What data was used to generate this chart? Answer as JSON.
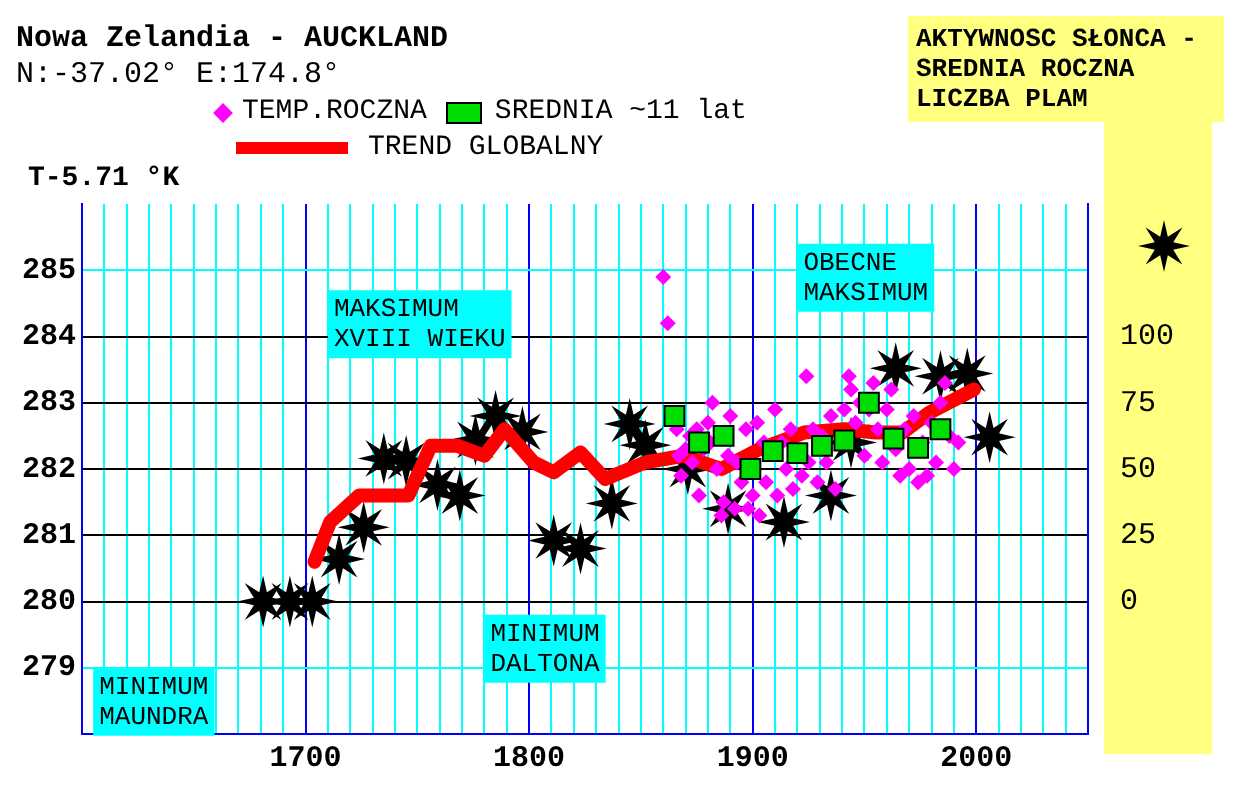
{
  "chart_data": {
    "type": "scatter",
    "title": "Nowa Zelandia - AUCKLAND",
    "subtitle": "N:-37.02° E:174.8°",
    "ylabel": "T-5.71 °K",
    "y2label": "AKTYWNOSC SŁONCA - SREDNIA ROCZNA LICZBA PLAM",
    "annotations": [
      "MAKSIMUM XVIII WIEKU",
      "MINIMUM DALTONA",
      "MINIMUM MAUNDRA",
      "OBECNE MAKSIMUM"
    ],
    "series": [
      {
        "name": "TEMP.ROCZNA",
        "type": "scatter",
        "marker": "diamond",
        "color": "#ff00ff",
        "x": [
          1860,
          1862,
          1866,
          1867,
          1868,
          1870,
          1872,
          1873,
          1875,
          1876,
          1878,
          1880,
          1881,
          1882,
          1884,
          1886,
          1887,
          1889,
          1890,
          1892,
          1893,
          1895,
          1897,
          1898,
          1900,
          1902,
          1903,
          1905,
          1906,
          1908,
          1910,
          1911,
          1913,
          1915,
          1917,
          1918,
          1920,
          1922,
          1924,
          1925,
          1927,
          1929,
          1931,
          1933,
          1935,
          1937,
          1939,
          1941,
          1943,
          1944,
          1946,
          1948,
          1950,
          1952,
          1954,
          1956,
          1958,
          1960,
          1962,
          1964,
          1966,
          1968,
          1970,
          1972,
          1974,
          1976,
          1978,
          1980,
          1982,
          1984,
          1986,
          1988,
          1990,
          1992
        ],
        "values": [
          284.9,
          284.2,
          282.6,
          282.2,
          281.9,
          282.3,
          282.5,
          282.1,
          282.6,
          281.6,
          282.3,
          282.7,
          282.4,
          283.0,
          282.0,
          281.3,
          281.5,
          282.2,
          282.8,
          281.4,
          282.1,
          281.8,
          282.6,
          281.4,
          281.6,
          282.7,
          281.3,
          282.4,
          281.8,
          null,
          282.9,
          281.6,
          282.4,
          282.0,
          282.6,
          281.7,
          null,
          281.9,
          283.4,
          282.1,
          282.6,
          281.8,
          282.5,
          282.1,
          282.8,
          281.7,
          null,
          282.9,
          283.4,
          283.2,
          282.7,
          283.0,
          282.2,
          282.9,
          283.3,
          282.6,
          282.1,
          282.9,
          283.2,
          282.3,
          281.9,
          282.6,
          282.0,
          282.8,
          281.8,
          282.4,
          281.9,
          282.7,
          282.1,
          283.0,
          283.3,
          282.5,
          282.0,
          282.4
        ]
      },
      {
        "name": "SREDNIA ~11 lat",
        "type": "scatter",
        "marker": "square",
        "color": "#00dd00",
        "x": [
          1865,
          1876,
          1887,
          1899,
          1909,
          1920,
          1931,
          1941,
          1952,
          1963,
          1974,
          1984
        ],
        "values": [
          282.8,
          282.4,
          282.5,
          282.0,
          282.27,
          282.24,
          282.35,
          282.43,
          283.0,
          282.46,
          282.32,
          282.6
        ]
      },
      {
        "name": "TREND GLOBALNY",
        "type": "line",
        "marker": "none",
        "color": "#ff0000",
        "x": [
          1704,
          1711,
          1724,
          1746,
          1756,
          1768,
          1780,
          1789,
          1802,
          1811,
          1823,
          1834,
          1852,
          1869,
          1886,
          1903,
          1923,
          1941,
          1955,
          1967,
          1979,
          1999
        ],
        "values": [
          280.6,
          281.2,
          281.6,
          281.6,
          282.35,
          282.35,
          282.2,
          282.6,
          282.1,
          281.95,
          282.25,
          281.85,
          282.1,
          282.2,
          282.0,
          282.3,
          282.55,
          282.6,
          282.55,
          282.55,
          282.85,
          283.2
        ]
      },
      {
        "type": "scatter",
        "marker": "star",
        "color": "#000000",
        "axis": "y2",
        "x": [
          1681,
          1693,
          1703,
          1715,
          1726,
          1735,
          1745,
          1759,
          1769,
          1776,
          1785,
          1797,
          1811,
          1823,
          1837,
          1845,
          1852,
          1871,
          1889,
          1914,
          1935,
          1944,
          1964,
          1984,
          1996,
          2006
        ],
        "values": [
          0,
          0,
          0,
          16,
          28,
          54,
          53,
          44,
          40,
          61,
          70,
          64,
          23,
          20,
          37,
          67,
          59,
          50,
          35,
          30,
          40,
          60,
          88,
          85,
          86,
          62
        ]
      }
    ],
    "xlim": [
      1600,
      2050
    ],
    "xticks": [
      {
        "value": 1610,
        "label": null
      },
      {
        "value": 1620,
        "label": null
      },
      {
        "value": 1630,
        "label": null
      },
      {
        "value": 1640,
        "label": null
      },
      {
        "value": 1650,
        "label": null
      },
      {
        "value": 1660,
        "label": null
      },
      {
        "value": 1670,
        "label": null
      },
      {
        "value": 1680,
        "label": null
      },
      {
        "value": 1690,
        "label": null
      },
      1700,
      {
        "value": 1710,
        "label": null
      },
      {
        "value": 1720,
        "label": null
      },
      {
        "value": 1730,
        "label": null
      },
      {
        "value": 1740,
        "label": null
      },
      {
        "value": 1750,
        "label": null
      },
      {
        "value": 1760,
        "label": null
      },
      {
        "value": 1770,
        "label": null
      },
      {
        "value": 1780,
        "label": null
      },
      {
        "value": 1790,
        "label": null
      },
      1800,
      {
        "value": 1810,
        "label": null
      },
      {
        "value": 1820,
        "label": null
      },
      {
        "value": 1830,
        "label": null
      },
      {
        "value": 1840,
        "label": null
      },
      {
        "value": 1850,
        "label": null
      },
      {
        "value": 1860,
        "label": null
      },
      {
        "value": 1870,
        "label": null
      },
      {
        "value": 1880,
        "label": null
      },
      {
        "value": 1890,
        "label": null
      },
      1900,
      {
        "value": 1910,
        "label": null
      },
      {
        "value": 1920,
        "label": null
      },
      {
        "value": 1930,
        "label": null
      },
      {
        "value": 1940,
        "label": null
      },
      {
        "value": 1950,
        "label": null
      },
      {
        "value": 1960,
        "label": null
      },
      {
        "value": 1970,
        "label": null
      },
      {
        "value": 1980,
        "label": null
      },
      {
        "value": 1990,
        "label": null
      },
      2000,
      {
        "value": 2010,
        "label": null
      },
      {
        "value": 2020,
        "label": null
      },
      {
        "value": 2030,
        "label": null
      },
      {
        "value": 2040,
        "label": null
      }
    ],
    "ylim": [
      278,
      286
    ],
    "yticks": [
      279,
      280,
      281,
      282,
      283,
      284,
      285
    ],
    "y2lim": [
      -50,
      150
    ],
    "y2ticks": [
      0,
      25,
      50,
      75,
      100
    ],
    "grid": true,
    "legend": "top"
  }
}
